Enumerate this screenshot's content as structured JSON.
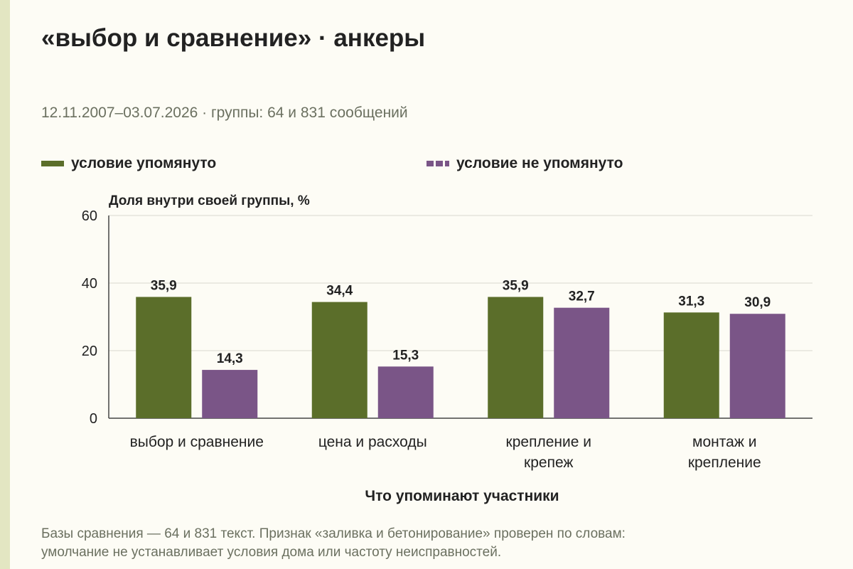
{
  "page": {
    "title": "«выбор и сравнение» · анкеры",
    "subtitle": "12.11.2007–03.07.2026 · группы: 64 и 831 сообщений",
    "footnote_lines": [
      "Базы сравнения — 64 и 831 текст. Признак «заливка и бетонирование» проверен по словам:",
      "умолчание не устанавливает условия дома или частоту неисправностей."
    ]
  },
  "legend": [
    {
      "label": "условие упомянуто",
      "color": "#5b6e2a",
      "style": "solid"
    },
    {
      "label": "условие не упомянуто",
      "color": "#7a5587",
      "style": "dashed"
    }
  ],
  "chart_data": {
    "type": "bar",
    "title": "«выбор и сравнение» · анкеры",
    "ylabel": "Доля внутри своей группы, %",
    "xlabel": "Что упоминают участники",
    "ylim": [
      0,
      60
    ],
    "yticks": [
      0,
      20,
      40,
      60
    ],
    "grid": true,
    "legend_position": "top",
    "categories": [
      [
        "выбор и сравнение"
      ],
      [
        "цена и расходы"
      ],
      [
        "крепление и",
        "крепеж"
      ],
      [
        "монтаж и",
        "крепление"
      ]
    ],
    "series": [
      {
        "name": "условие упомянуто",
        "color": "#5b6e2a",
        "values": [
          35.9,
          34.4,
          35.9,
          31.3
        ],
        "labels": [
          "35,9",
          "34,4",
          "35,9",
          "31,3"
        ]
      },
      {
        "name": "условие не упомянуто",
        "color": "#7a5587",
        "values": [
          14.3,
          15.3,
          32.7,
          30.9
        ],
        "labels": [
          "14,3",
          "15,3",
          "32,7",
          "30,9"
        ]
      }
    ]
  }
}
